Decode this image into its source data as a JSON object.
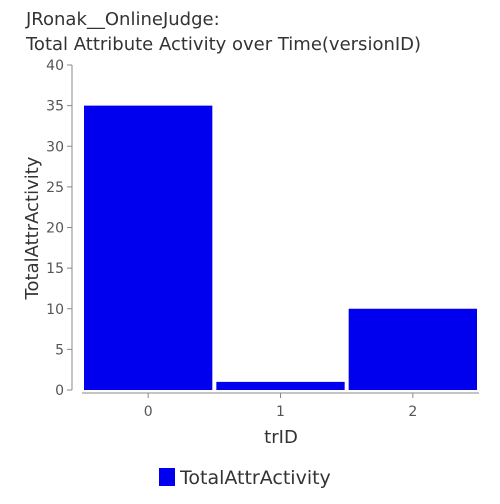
{
  "chart_data": {
    "type": "bar",
    "title_lines": [
      "JRonak__OnlineJudge:",
      "Total Attribute Activity over Time(versionID)"
    ],
    "xlabel": "trID",
    "ylabel": "TotalAttrActivity",
    "categories": [
      "0",
      "1",
      "2"
    ],
    "series": [
      {
        "name": "TotalAttrActivity",
        "values": [
          35,
          1,
          10
        ],
        "color": "#0000ee"
      }
    ],
    "ylim": [
      0,
      40
    ],
    "yticks": [
      0,
      5,
      10,
      15,
      20,
      25,
      30,
      35,
      40
    ],
    "grid": false,
    "legend_position": "bottom-center"
  }
}
